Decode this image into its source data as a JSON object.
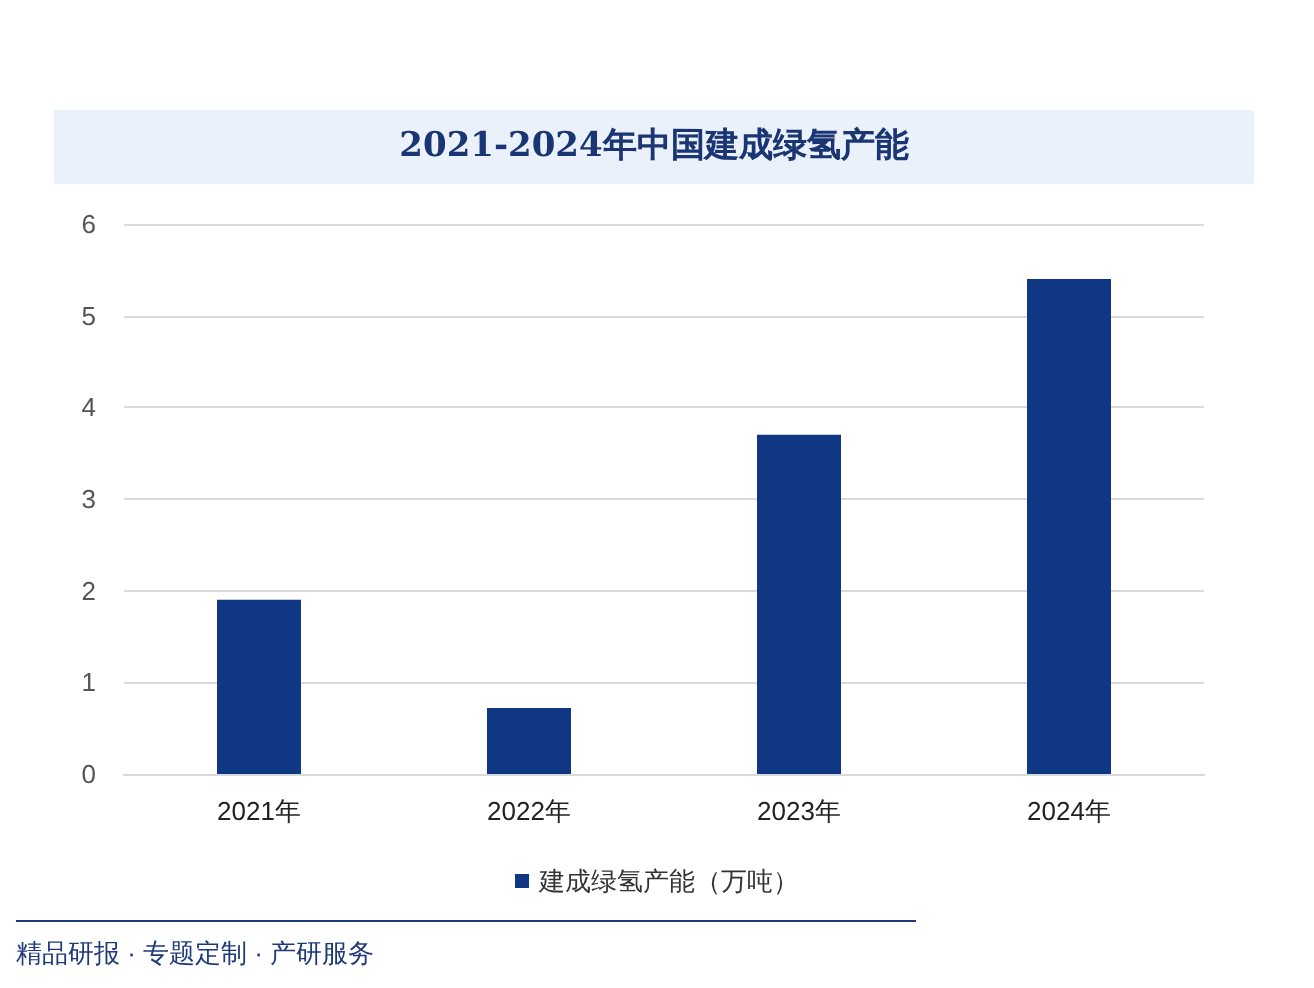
{
  "chart_data": {
    "type": "bar",
    "title": "2021-2024年中国建成绿氢产能",
    "categories": [
      "2021年",
      "2022年",
      "2023年",
      "2024年"
    ],
    "series": [
      {
        "name": "建成绿氢产能（万吨）",
        "color": "#0f3784",
        "values": [
          1.9,
          0.72,
          3.7,
          5.4
        ]
      }
    ],
    "ylim": [
      0,
      6
    ],
    "yticks": [
      0,
      1,
      2,
      3,
      4,
      5,
      6
    ],
    "grid": "y",
    "legend": "bottom",
    "annotations": [
      "精品研报 · 专题定制 · 产研服务"
    ]
  }
}
